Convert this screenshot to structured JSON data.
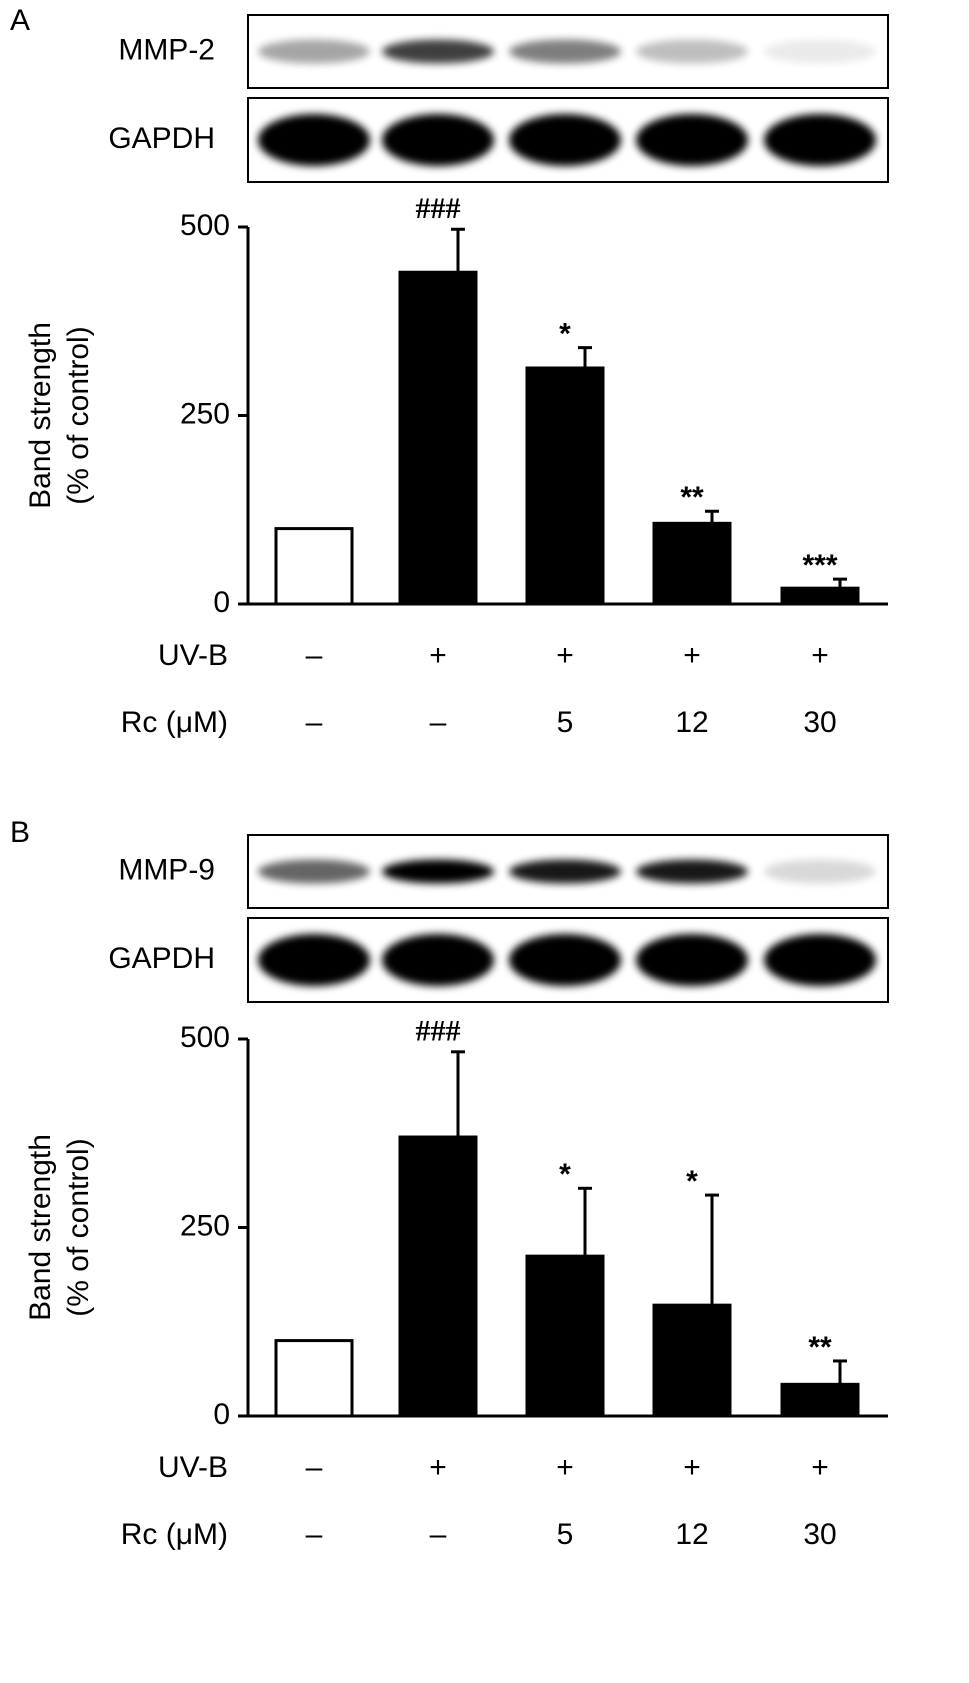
{
  "chart_data": [
    {
      "type": "bar",
      "panel": "A",
      "blots": [
        "MMP-2",
        "GAPDH"
      ],
      "ylabel": [
        "Band strength",
        "(% of control)"
      ],
      "categories": [
        null,
        null,
        null,
        null,
        null
      ],
      "rows": [
        {
          "label": "UV-B",
          "values": [
            "–",
            "+",
            "+",
            "+",
            "+"
          ]
        },
        {
          "label": "Rc (μM)",
          "values": [
            "–",
            "–",
            "5",
            "12",
            "30"
          ]
        }
      ],
      "values": [
        100,
        440,
        313,
        107,
        21
      ],
      "errors": [
        0,
        57,
        27,
        16,
        12
      ],
      "annotations": [
        null,
        "###",
        "*",
        "**",
        "***"
      ],
      "colors": [
        "#ffffff",
        "#000000",
        "#000000",
        "#000000",
        "#000000"
      ],
      "ylim": [
        0,
        500
      ],
      "yticks": [
        0,
        250,
        500
      ]
    },
    {
      "type": "bar",
      "panel": "B",
      "blots": [
        "MMP-9",
        "GAPDH"
      ],
      "ylabel": [
        "Band strength",
        "(% of control)"
      ],
      "categories": [
        null,
        null,
        null,
        null,
        null
      ],
      "rows": [
        {
          "label": "UV-B",
          "values": [
            "–",
            "+",
            "+",
            "+",
            "+"
          ]
        },
        {
          "label": "Rc (μM)",
          "values": [
            "–",
            "–",
            "5",
            "12",
            "30"
          ]
        }
      ],
      "values": [
        100,
        370,
        212,
        147,
        42
      ],
      "errors": [
        0,
        113,
        90,
        146,
        31
      ],
      "annotations": [
        null,
        "###",
        "*",
        "*",
        "**"
      ],
      "colors": [
        "#ffffff",
        "#000000",
        "#000000",
        "#000000",
        "#000000"
      ],
      "ylim": [
        0,
        500
      ],
      "yticks": [
        0,
        250,
        500
      ]
    }
  ]
}
